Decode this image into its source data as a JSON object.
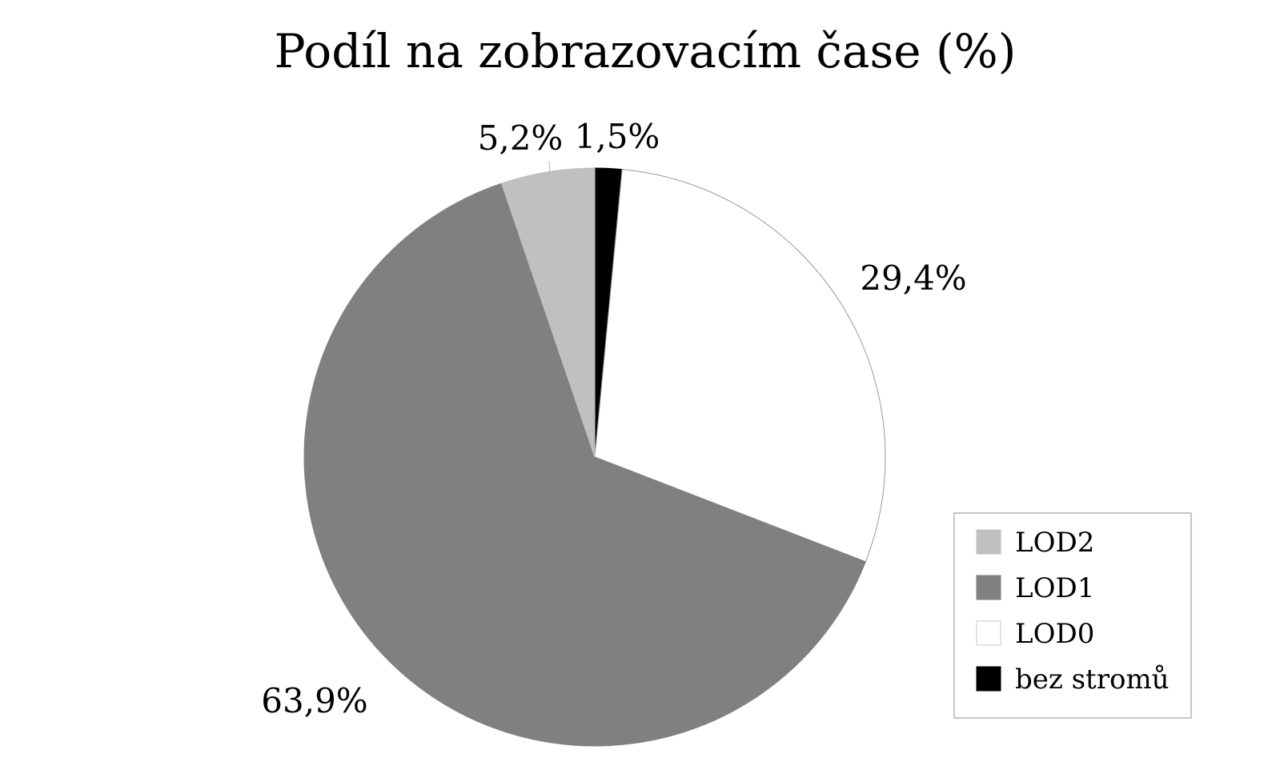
{
  "chart_data": {
    "type": "pie",
    "title": "Podíl na zobrazovacím čase (%)",
    "slices": [
      {
        "label": "bez stromů",
        "value": 1.5,
        "display": "1,5%",
        "color": "#000000"
      },
      {
        "label": "LOD0",
        "value": 29.4,
        "display": "29,4%",
        "color": "#ffffff"
      },
      {
        "label": "LOD1",
        "value": 63.9,
        "display": "63,9%",
        "color": "#808080"
      },
      {
        "label": "LOD2",
        "value": 5.2,
        "display": "5,2%",
        "color": "#c0c0c0"
      }
    ],
    "legend": {
      "position": "right",
      "order": [
        "LOD2",
        "LOD1",
        "LOD0",
        "bez stromů"
      ]
    }
  }
}
